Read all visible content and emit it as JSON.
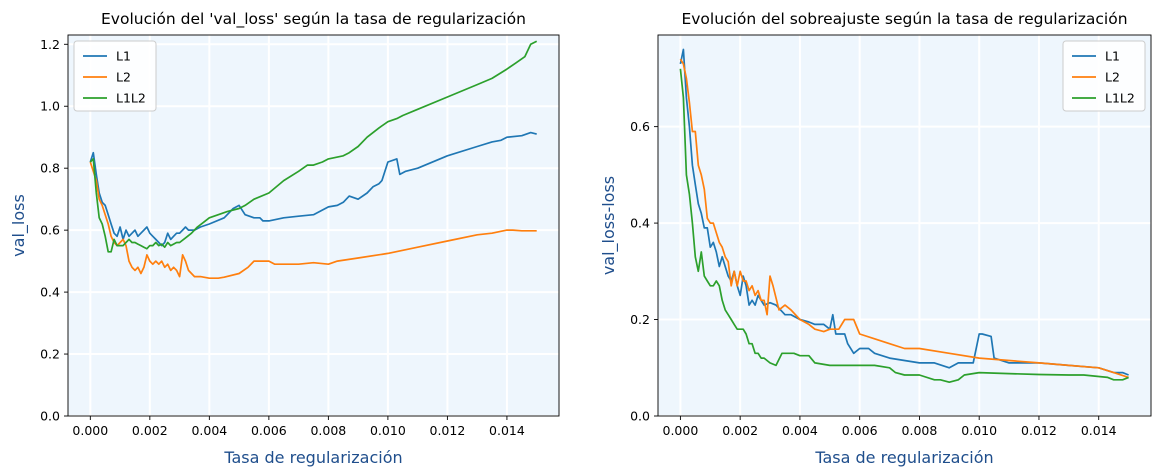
{
  "chart_data": [
    {
      "type": "line",
      "title": "Evolución del 'val_loss' según la tasa de regularización",
      "xlabel": "Tasa de regularización",
      "ylabel": "val_loss",
      "xlim": [
        -0.00075,
        0.01575
      ],
      "ylim": [
        0.0,
        1.23
      ],
      "xticks": [
        0.0,
        0.002,
        0.004,
        0.006,
        0.008,
        0.01,
        0.012,
        0.014
      ],
      "xtick_labels": [
        "0.000",
        "0.002",
        "0.004",
        "0.006",
        "0.008",
        "0.010",
        "0.012",
        "0.014"
      ],
      "yticks": [
        0.0,
        0.2,
        0.4,
        0.6,
        0.8,
        1.0,
        1.2
      ],
      "ytick_labels": [
        "0.0",
        "0.2",
        "0.4",
        "0.6",
        "0.8",
        "1.0",
        "1.2"
      ],
      "grid": true,
      "background": "#eef6fd",
      "legend": "top-left",
      "series": [
        {
          "name": "L1",
          "color": "#1f77b4",
          "x": [
            0,
            0.0001,
            0.0002,
            0.0003,
            0.0004,
            0.0005,
            0.0006,
            0.0007,
            0.0008,
            0.0009,
            0.001,
            0.0011,
            0.0012,
            0.0013,
            0.0014,
            0.0015,
            0.0016,
            0.0017,
            0.0018,
            0.0019,
            0.002,
            0.0021,
            0.0022,
            0.0023,
            0.0024,
            0.0025,
            0.0026,
            0.0027,
            0.0028,
            0.0029,
            0.003,
            0.0031,
            0.0032,
            0.0033,
            0.0035,
            0.0037,
            0.004,
            0.0045,
            0.0048,
            0.005,
            0.0052,
            0.0055,
            0.0057,
            0.0058,
            0.006,
            0.0065,
            0.007,
            0.0075,
            0.008,
            0.0083,
            0.0085,
            0.0087,
            0.009,
            0.0093,
            0.0095,
            0.0097,
            0.0098,
            0.01,
            0.0103,
            0.0104,
            0.0106,
            0.011,
            0.012,
            0.013,
            0.0135,
            0.0138,
            0.014,
            0.0145,
            0.0148,
            0.015
          ],
          "y": [
            0.82,
            0.85,
            0.78,
            0.72,
            0.69,
            0.68,
            0.65,
            0.62,
            0.59,
            0.58,
            0.61,
            0.57,
            0.6,
            0.58,
            0.59,
            0.6,
            0.58,
            0.59,
            0.6,
            0.61,
            0.59,
            0.58,
            0.57,
            0.56,
            0.55,
            0.56,
            0.59,
            0.57,
            0.58,
            0.59,
            0.59,
            0.6,
            0.61,
            0.6,
            0.6,
            0.61,
            0.62,
            0.64,
            0.67,
            0.68,
            0.65,
            0.64,
            0.64,
            0.63,
            0.63,
            0.64,
            0.645,
            0.65,
            0.675,
            0.68,
            0.69,
            0.71,
            0.7,
            0.72,
            0.74,
            0.75,
            0.76,
            0.82,
            0.83,
            0.78,
            0.79,
            0.8,
            0.84,
            0.87,
            0.885,
            0.89,
            0.9,
            0.905,
            0.915,
            0.91
          ]
        },
        {
          "name": "L2",
          "color": "#ff7f0e",
          "x": [
            0,
            0.0001,
            0.0002,
            0.0003,
            0.0004,
            0.0005,
            0.0006,
            0.0007,
            0.0008,
            0.0009,
            0.001,
            0.0011,
            0.0012,
            0.0013,
            0.0014,
            0.0015,
            0.0016,
            0.0017,
            0.0018,
            0.0019,
            0.002,
            0.0021,
            0.0022,
            0.0023,
            0.0024,
            0.0025,
            0.0026,
            0.0027,
            0.0028,
            0.0029,
            0.003,
            0.0031,
            0.0032,
            0.0033,
            0.0035,
            0.0037,
            0.004,
            0.0043,
            0.0045,
            0.005,
            0.0053,
            0.0055,
            0.0058,
            0.006,
            0.0062,
            0.0065,
            0.007,
            0.0075,
            0.008,
            0.0083,
            0.009,
            0.01,
            0.011,
            0.012,
            0.013,
            0.0135,
            0.014,
            0.0142,
            0.0145,
            0.015
          ],
          "y": [
            0.82,
            0.79,
            0.76,
            0.7,
            0.68,
            0.65,
            0.62,
            0.58,
            0.56,
            0.55,
            0.56,
            0.57,
            0.55,
            0.5,
            0.48,
            0.47,
            0.48,
            0.46,
            0.48,
            0.52,
            0.5,
            0.49,
            0.5,
            0.49,
            0.5,
            0.48,
            0.49,
            0.47,
            0.48,
            0.47,
            0.45,
            0.52,
            0.5,
            0.47,
            0.45,
            0.45,
            0.445,
            0.445,
            0.448,
            0.46,
            0.48,
            0.5,
            0.5,
            0.5,
            0.49,
            0.49,
            0.49,
            0.495,
            0.49,
            0.5,
            0.51,
            0.525,
            0.545,
            0.565,
            0.585,
            0.59,
            0.6,
            0.6,
            0.598,
            0.598
          ]
        },
        {
          "name": "L1L2",
          "color": "#2ca02c",
          "x": [
            0,
            0.0001,
            0.0002,
            0.0003,
            0.0004,
            0.0005,
            0.0006,
            0.0007,
            0.0008,
            0.0009,
            0.001,
            0.0011,
            0.0012,
            0.0013,
            0.0014,
            0.0015,
            0.0016,
            0.0017,
            0.0018,
            0.0019,
            0.002,
            0.0021,
            0.0022,
            0.0023,
            0.0024,
            0.0025,
            0.0026,
            0.0027,
            0.0028,
            0.0029,
            0.003,
            0.0032,
            0.0034,
            0.0036,
            0.0038,
            0.004,
            0.0043,
            0.0046,
            0.005,
            0.0052,
            0.0055,
            0.006,
            0.0065,
            0.007,
            0.0073,
            0.0075,
            0.0078,
            0.008,
            0.0085,
            0.0087,
            0.009,
            0.0093,
            0.0097,
            0.01,
            0.0103,
            0.0105,
            0.011,
            0.012,
            0.013,
            0.0135,
            0.014,
            0.0143,
            0.0146,
            0.0148,
            0.015
          ],
          "y": [
            0.82,
            0.83,
            0.72,
            0.64,
            0.62,
            0.58,
            0.53,
            0.53,
            0.57,
            0.55,
            0.55,
            0.55,
            0.56,
            0.57,
            0.56,
            0.56,
            0.555,
            0.55,
            0.545,
            0.54,
            0.55,
            0.55,
            0.56,
            0.55,
            0.555,
            0.545,
            0.56,
            0.55,
            0.555,
            0.56,
            0.56,
            0.575,
            0.59,
            0.61,
            0.625,
            0.64,
            0.65,
            0.66,
            0.67,
            0.68,
            0.7,
            0.72,
            0.76,
            0.79,
            0.81,
            0.81,
            0.82,
            0.83,
            0.84,
            0.85,
            0.87,
            0.9,
            0.93,
            0.95,
            0.96,
            0.97,
            0.99,
            1.03,
            1.07,
            1.09,
            1.12,
            1.14,
            1.16,
            1.2,
            1.21
          ]
        }
      ]
    },
    {
      "type": "line",
      "title": "Evolución del sobreajuste según la tasa de regularización",
      "xlabel": "Tasa de regularización",
      "ylabel": "val_loss-loss",
      "xlim": [
        -0.00075,
        0.01575
      ],
      "ylim": [
        0.0,
        0.79
      ],
      "xticks": [
        0.0,
        0.002,
        0.004,
        0.006,
        0.008,
        0.01,
        0.012,
        0.014
      ],
      "xtick_labels": [
        "0.000",
        "0.002",
        "0.004",
        "0.006",
        "0.008",
        "0.010",
        "0.012",
        "0.014"
      ],
      "yticks": [
        0.0,
        0.2,
        0.4,
        0.6
      ],
      "ytick_labels": [
        "0.0",
        "0.2",
        "0.4",
        "0.6"
      ],
      "grid": true,
      "background": "#eef6fd",
      "legend": "top-right",
      "series": [
        {
          "name": "L1",
          "color": "#1f77b4",
          "x": [
            0,
            0.0001,
            0.0002,
            0.0003,
            0.0004,
            0.0005,
            0.0006,
            0.0007,
            0.0008,
            0.0009,
            0.001,
            0.0011,
            0.0012,
            0.0013,
            0.0014,
            0.0015,
            0.0016,
            0.0017,
            0.0018,
            0.0019,
            0.002,
            0.0021,
            0.0022,
            0.0023,
            0.0024,
            0.0025,
            0.0026,
            0.0027,
            0.0028,
            0.003,
            0.0032,
            0.0035,
            0.0037,
            0.004,
            0.0043,
            0.0045,
            0.0048,
            0.005,
            0.0051,
            0.0052,
            0.0055,
            0.0056,
            0.0058,
            0.006,
            0.0063,
            0.0065,
            0.007,
            0.0075,
            0.008,
            0.0085,
            0.009,
            0.0093,
            0.0095,
            0.0098,
            0.01,
            0.0101,
            0.0104,
            0.0105,
            0.011,
            0.012,
            0.013,
            0.014,
            0.0145,
            0.0148,
            0.015
          ],
          "y": [
            0.73,
            0.76,
            0.66,
            0.6,
            0.52,
            0.48,
            0.44,
            0.42,
            0.39,
            0.39,
            0.35,
            0.36,
            0.34,
            0.31,
            0.33,
            0.31,
            0.29,
            0.28,
            0.3,
            0.27,
            0.25,
            0.29,
            0.27,
            0.23,
            0.24,
            0.23,
            0.25,
            0.24,
            0.23,
            0.235,
            0.23,
            0.21,
            0.21,
            0.2,
            0.195,
            0.19,
            0.19,
            0.18,
            0.21,
            0.17,
            0.17,
            0.15,
            0.13,
            0.14,
            0.14,
            0.13,
            0.12,
            0.115,
            0.11,
            0.11,
            0.1,
            0.11,
            0.11,
            0.11,
            0.17,
            0.17,
            0.165,
            0.12,
            0.11,
            0.11,
            0.105,
            0.1,
            0.09,
            0.09,
            0.085
          ]
        },
        {
          "name": "L2",
          "color": "#ff7f0e",
          "x": [
            0,
            0.0001,
            0.0002,
            0.0003,
            0.0004,
            0.0005,
            0.0006,
            0.0007,
            0.0008,
            0.0009,
            0.001,
            0.0011,
            0.0012,
            0.0013,
            0.0014,
            0.0015,
            0.0016,
            0.0017,
            0.0018,
            0.0019,
            0.002,
            0.0021,
            0.0022,
            0.0023,
            0.0024,
            0.0025,
            0.0026,
            0.0027,
            0.0028,
            0.0029,
            0.003,
            0.0031,
            0.0033,
            0.0035,
            0.0037,
            0.004,
            0.0043,
            0.0045,
            0.0048,
            0.005,
            0.0053,
            0.0055,
            0.0057,
            0.0058,
            0.006,
            0.0065,
            0.007,
            0.0075,
            0.008,
            0.009,
            0.01,
            0.011,
            0.012,
            0.013,
            0.014,
            0.0145,
            0.015
          ],
          "y": [
            0.74,
            0.73,
            0.7,
            0.65,
            0.59,
            0.59,
            0.52,
            0.5,
            0.47,
            0.41,
            0.4,
            0.4,
            0.38,
            0.36,
            0.35,
            0.33,
            0.32,
            0.27,
            0.3,
            0.27,
            0.3,
            0.28,
            0.28,
            0.26,
            0.27,
            0.25,
            0.26,
            0.24,
            0.24,
            0.21,
            0.29,
            0.27,
            0.22,
            0.23,
            0.22,
            0.2,
            0.19,
            0.18,
            0.175,
            0.18,
            0.18,
            0.2,
            0.2,
            0.2,
            0.17,
            0.16,
            0.15,
            0.14,
            0.14,
            0.13,
            0.12,
            0.115,
            0.11,
            0.105,
            0.1,
            0.09,
            0.08
          ]
        },
        {
          "name": "L1L2",
          "color": "#2ca02c",
          "x": [
            0,
            0.0001,
            0.0002,
            0.0003,
            0.0004,
            0.0005,
            0.0006,
            0.0007,
            0.0008,
            0.0009,
            0.001,
            0.0011,
            0.0012,
            0.0013,
            0.0014,
            0.0015,
            0.0016,
            0.0017,
            0.0018,
            0.0019,
            0.002,
            0.0021,
            0.0022,
            0.0023,
            0.0024,
            0.0025,
            0.0026,
            0.0027,
            0.0028,
            0.003,
            0.0032,
            0.0034,
            0.0035,
            0.0038,
            0.004,
            0.0043,
            0.0045,
            0.005,
            0.0055,
            0.006,
            0.0065,
            0.007,
            0.0072,
            0.0075,
            0.008,
            0.0085,
            0.0087,
            0.009,
            0.0093,
            0.0095,
            0.01,
            0.011,
            0.012,
            0.013,
            0.0135,
            0.014,
            0.0143,
            0.0145,
            0.0148,
            0.015
          ],
          "y": [
            0.72,
            0.66,
            0.5,
            0.46,
            0.4,
            0.33,
            0.3,
            0.34,
            0.29,
            0.28,
            0.27,
            0.27,
            0.28,
            0.27,
            0.24,
            0.22,
            0.21,
            0.2,
            0.19,
            0.18,
            0.18,
            0.18,
            0.17,
            0.15,
            0.15,
            0.13,
            0.13,
            0.12,
            0.12,
            0.11,
            0.105,
            0.13,
            0.13,
            0.13,
            0.125,
            0.125,
            0.11,
            0.105,
            0.105,
            0.105,
            0.105,
            0.1,
            0.09,
            0.085,
            0.085,
            0.075,
            0.075,
            0.07,
            0.075,
            0.085,
            0.09,
            0.088,
            0.086,
            0.085,
            0.085,
            0.082,
            0.08,
            0.075,
            0.075,
            0.08
          ]
        }
      ]
    }
  ]
}
